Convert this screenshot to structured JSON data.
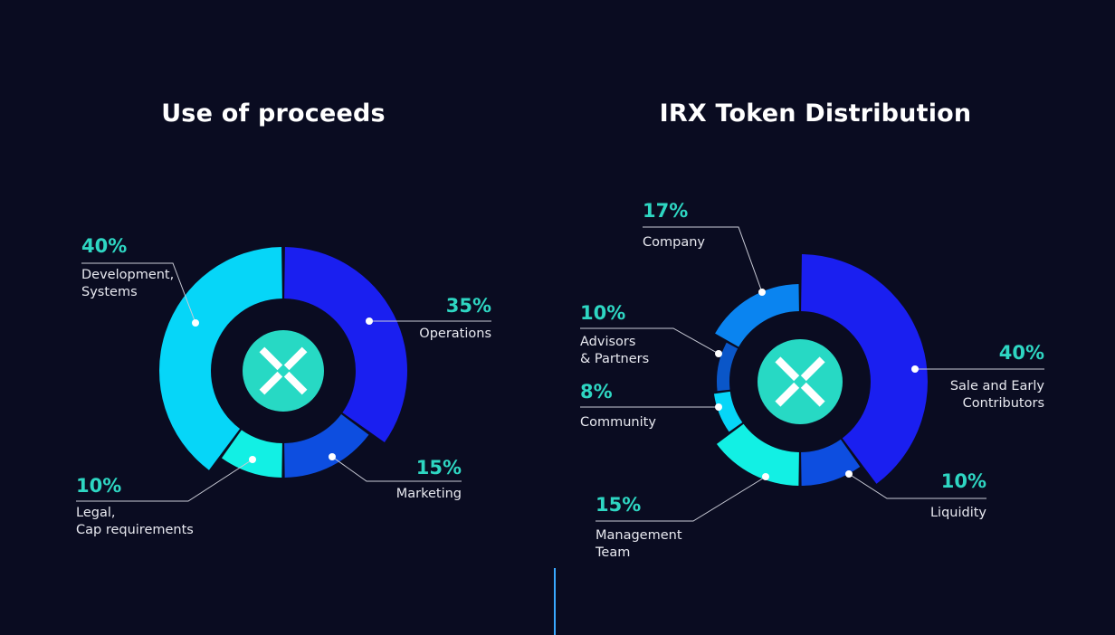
{
  "charts": [
    {
      "id": "left",
      "colors": [
        "#1a1ff0",
        "#0d4ee0",
        "#12f0e4",
        "#06d6f8"
      ],
      "chart_data": {
        "type": "pie",
        "title": "Use of proceeds",
        "slices": [
          {
            "pct": "35%",
            "value": 35,
            "label_lines": [
              "Operations"
            ]
          },
          {
            "pct": "15%",
            "value": 15,
            "label_lines": [
              "Marketing"
            ]
          },
          {
            "pct": "10%",
            "value": 10,
            "label_lines": [
              "Legal,",
              "Cap requirements"
            ]
          },
          {
            "pct": "40%",
            "value": 40,
            "label_lines": [
              "Development,",
              "Systems"
            ]
          }
        ]
      }
    },
    {
      "id": "right",
      "colors": [
        "#1a1ff0",
        "#0d4ee0",
        "#12f0e4",
        "#06d6f8",
        "#0a56c8",
        "#0a84f0"
      ],
      "chart_data": {
        "type": "pie",
        "title": "IRX Token Distribution",
        "slices": [
          {
            "pct": "40%",
            "value": 40,
            "label_lines": [
              "Sale and Early",
              "Contributors"
            ]
          },
          {
            "pct": "10%",
            "value": 10,
            "label_lines": [
              "Liquidity"
            ]
          },
          {
            "pct": "15%",
            "value": 15,
            "label_lines": [
              "Management",
              "Team"
            ]
          },
          {
            "pct": "8%",
            "value": 8,
            "label_lines": [
              "Community"
            ]
          },
          {
            "pct": "10%",
            "value": 10,
            "label_lines": [
              "Advisors",
              "& Partners"
            ]
          },
          {
            "pct": "17%",
            "value": 17,
            "label_lines": [
              "Company"
            ]
          }
        ]
      }
    }
  ],
  "logo": {
    "icon": "x-logo-icon",
    "color": "#27d9c4"
  }
}
